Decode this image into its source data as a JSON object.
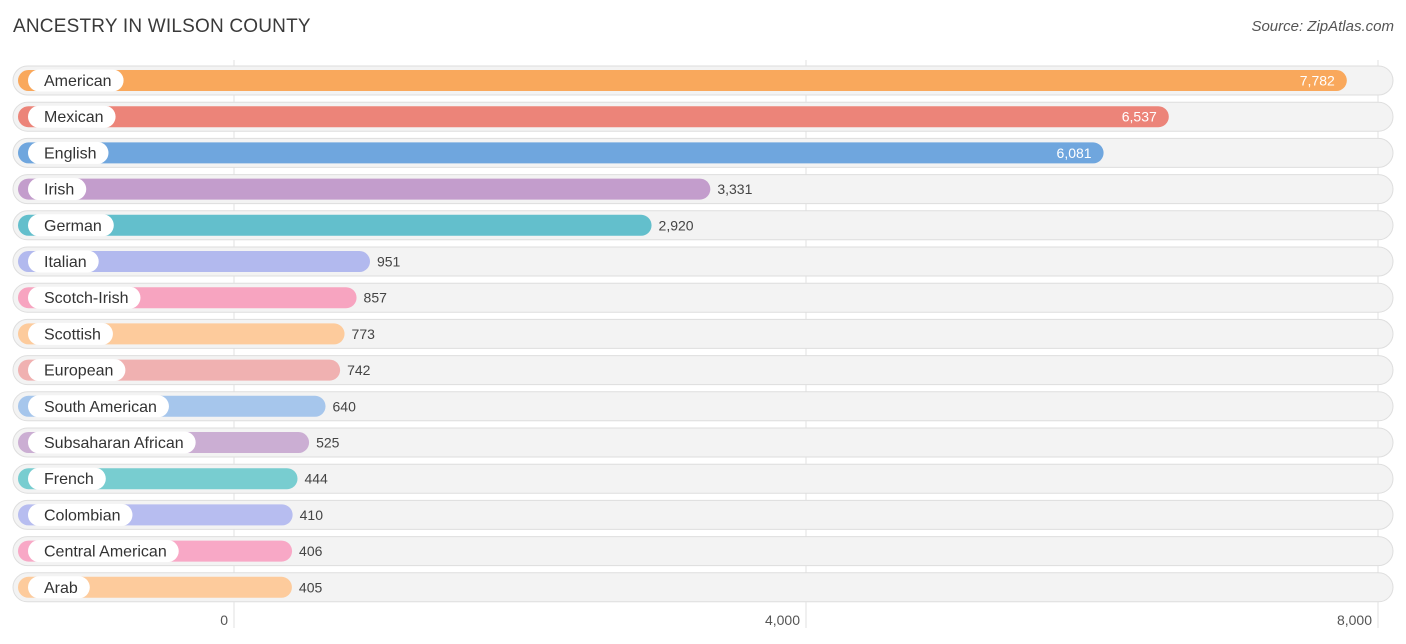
{
  "header": {
    "title": "ANCESTRY IN WILSON COUNTY",
    "source": "Source: ZipAtlas.com"
  },
  "chart_data": {
    "type": "bar",
    "orientation": "horizontal",
    "title": "ANCESTRY IN WILSON COUNTY",
    "categories": [
      "American",
      "Mexican",
      "English",
      "Irish",
      "German",
      "Italian",
      "Scotch-Irish",
      "Scottish",
      "European",
      "South American",
      "Subsaharan African",
      "French",
      "Colombian",
      "Central American",
      "Arab"
    ],
    "values": [
      7782,
      6537,
      6081,
      3331,
      2920,
      951,
      857,
      773,
      742,
      640,
      525,
      444,
      410,
      406,
      405
    ],
    "value_labels": [
      "7,782",
      "6,537",
      "6,081",
      "3,331",
      "2,920",
      "951",
      "857",
      "773",
      "742",
      "640",
      "525",
      "444",
      "410",
      "406",
      "405"
    ],
    "colors": [
      "#f9a85c",
      "#ec8479",
      "#6fa6de",
      "#c39dcc",
      "#63bfcc",
      "#b2b9ee",
      "#f7a4c0",
      "#fdcb9c",
      "#f0b1b1",
      "#a6c6ec",
      "#cbaed3",
      "#78cdd0",
      "#b7bdf0",
      "#f8a8c6",
      "#fdcb9c"
    ],
    "xlim": [
      0,
      8000
    ],
    "xticks": [
      0,
      4000,
      8000
    ],
    "xtick_labels": [
      "0",
      "4,000",
      "8,000"
    ],
    "grid": true,
    "legend": "none"
  }
}
